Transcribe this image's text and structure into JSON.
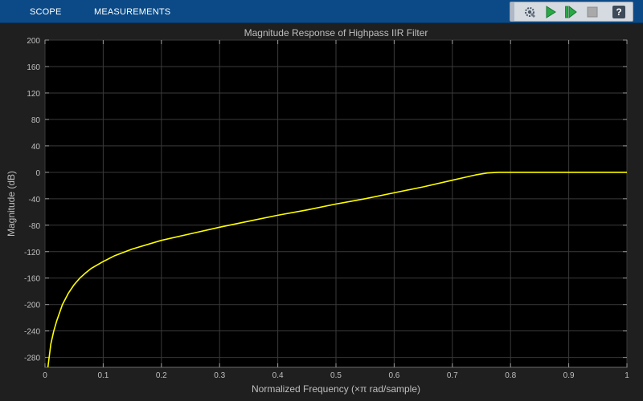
{
  "toolstrip": {
    "tabs": [
      {
        "label": "SCOPE"
      },
      {
        "label": "MEASUREMENTS"
      }
    ]
  },
  "toolbar": {
    "buttons": [
      {
        "icon": "settings-icon"
      },
      {
        "icon": "run-icon"
      },
      {
        "icon": "step-forward-icon"
      },
      {
        "icon": "stop-icon"
      },
      {
        "icon": "help-icon"
      }
    ],
    "help_label": "?"
  },
  "colors": {
    "toolstrip_bg": "#0b4a86",
    "plot_bg": "#000000",
    "figure_bg": "#1f1f1f",
    "trace": "#ffff00",
    "grid": "#3a3a3a",
    "text": "#bfbfbf"
  },
  "chart_data": {
    "type": "line",
    "title": "Magnitude Response of Highpass IIR Filter",
    "xlabel": "Normalized Frequency (×π rad/sample)",
    "ylabel": "Magnitude (dB)",
    "xlim": [
      0,
      1
    ],
    "ylim": [
      -295,
      200
    ],
    "xticks": [
      0,
      0.1,
      0.2,
      0.3,
      0.4,
      0.5,
      0.6,
      0.7,
      0.8,
      0.9,
      1
    ],
    "xtick_labels": [
      "0",
      "0.1",
      "0.2",
      "0.3",
      "0.4",
      "0.5",
      "0.6",
      "0.7",
      "0.8",
      "0.9",
      "1"
    ],
    "yticks": [
      200,
      160,
      120,
      80,
      40,
      0,
      -40,
      -80,
      -120,
      -160,
      -200,
      -240,
      -280
    ],
    "ytick_labels": [
      "200",
      "160",
      "120",
      "80",
      "40",
      "0",
      "-40",
      "-80",
      "-120",
      "-160",
      "-200",
      "-240",
      "-280"
    ],
    "grid": true,
    "series": [
      {
        "color": "#ffff00",
        "x": [
          0.005,
          0.01,
          0.015,
          0.02,
          0.03,
          0.04,
          0.05,
          0.06,
          0.07,
          0.08,
          0.1,
          0.12,
          0.15,
          0.2,
          0.25,
          0.3,
          0.35,
          0.4,
          0.45,
          0.5,
          0.55,
          0.6,
          0.65,
          0.7,
          0.72,
          0.74,
          0.76,
          0.78,
          0.8,
          0.85,
          0.9,
          0.95,
          1.0
        ],
        "y": [
          -295,
          -260,
          -240,
          -225,
          -200,
          -183,
          -170,
          -160,
          -152,
          -145,
          -135,
          -126,
          -116,
          -103,
          -93,
          -83,
          -74,
          -65,
          -57,
          -48,
          -40,
          -31,
          -22,
          -12,
          -8,
          -4,
          -1,
          0,
          0,
          0,
          0,
          0,
          0
        ]
      }
    ]
  }
}
